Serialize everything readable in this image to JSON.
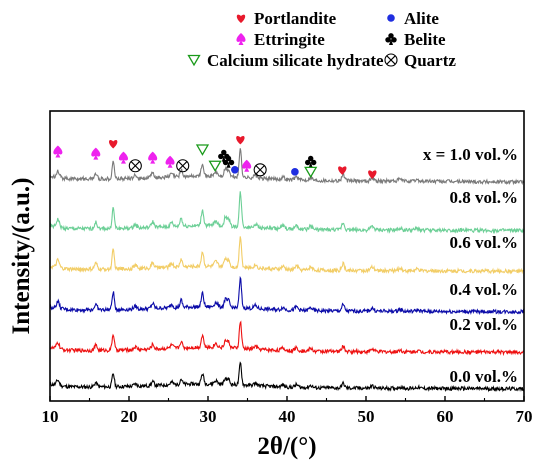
{
  "chart_data": {
    "type": "line",
    "xlabel": "2θ/(°)",
    "ylabel": "Intensity/(a.u.)",
    "xlim": [
      10,
      70
    ],
    "x_ticks": [
      "10",
      "20",
      "30",
      "40",
      "50",
      "60",
      "70"
    ],
    "grid": false,
    "legend_position": "top",
    "legend": [
      {
        "name": "Portlandite",
        "symbol": "heart",
        "color": "#e8192c"
      },
      {
        "name": "Alite",
        "symbol": "dot",
        "color": "#1f2ee0"
      },
      {
        "name": "Ettringite",
        "symbol": "spade",
        "color": "#ee22ee"
      },
      {
        "name": "Belite",
        "symbol": "club",
        "color": "#000000"
      },
      {
        "name": "Calcium silicate hydrate",
        "symbol": "triangle-down",
        "color": "#1a9a1a"
      },
      {
        "name": "Quartz",
        "symbol": "circle-x",
        "color": "#000000"
      }
    ],
    "series": [
      {
        "name": "0.0 vol.%",
        "color": "#000000",
        "baseline": 0.05,
        "slope": 0.025,
        "bump": 0.03,
        "scale": 0.45
      },
      {
        "name": "0.2 vol.%",
        "color": "#ee1111",
        "baseline": 0.95,
        "slope": 0.025,
        "bump": 0.03,
        "scale": 0.55
      },
      {
        "name": "0.4 vol.%",
        "color": "#0a0aa8",
        "baseline": 1.95,
        "slope": 0.025,
        "bump": 0.03,
        "scale": 0.6
      },
      {
        "name": "0.6 vol.%",
        "color": "#f2cd66",
        "baseline": 2.95,
        "slope": 0.025,
        "bump": 0.03,
        "scale": 0.65
      },
      {
        "name": "0.8 vol.%",
        "color": "#6ccf96",
        "baseline": 3.95,
        "slope": 0.025,
        "bump": 0.03,
        "scale": 0.7
      },
      {
        "name": "x = 1.0 vol.%",
        "color": "#7a7a7a",
        "baseline": 5.15,
        "slope": 0.04,
        "bump": 0.03,
        "scale": 0.6
      }
    ],
    "peaks": [
      {
        "x": 11.0,
        "h": 0.28,
        "w": 0.25
      },
      {
        "x": 15.8,
        "h": 0.22,
        "w": 0.25
      },
      {
        "x": 18.0,
        "h": 0.72,
        "w": 0.2
      },
      {
        "x": 20.8,
        "h": 0.12,
        "w": 0.3
      },
      {
        "x": 23.0,
        "h": 0.2,
        "w": 0.25
      },
      {
        "x": 25.4,
        "h": 0.14,
        "w": 0.25
      },
      {
        "x": 26.6,
        "h": 0.3,
        "w": 0.2
      },
      {
        "x": 29.3,
        "h": 0.55,
        "w": 0.22
      },
      {
        "x": 31.0,
        "h": 0.18,
        "w": 0.3
      },
      {
        "x": 32.2,
        "h": 0.32,
        "w": 0.22
      },
      {
        "x": 32.6,
        "h": 0.28,
        "w": 0.22
      },
      {
        "x": 34.1,
        "h": 1.2,
        "w": 0.2
      },
      {
        "x": 36.0,
        "h": 0.12,
        "w": 0.3
      },
      {
        "x": 39.5,
        "h": 0.1,
        "w": 0.3
      },
      {
        "x": 41.2,
        "h": 0.14,
        "w": 0.3
      },
      {
        "x": 43.0,
        "h": 0.12,
        "w": 0.3
      },
      {
        "x": 47.1,
        "h": 0.25,
        "w": 0.25
      },
      {
        "x": 50.8,
        "h": 0.12,
        "w": 0.3
      },
      {
        "x": 54.3,
        "h": 0.08,
        "w": 0.3
      },
      {
        "x": 56.5,
        "h": 0.06,
        "w": 0.3
      }
    ],
    "peak_markers": [
      {
        "symbol": "spade",
        "x": 11.0,
        "y": 5.9
      },
      {
        "symbol": "spade",
        "x": 15.8,
        "y": 5.85
      },
      {
        "symbol": "heart",
        "x": 18.0,
        "y": 6.1
      },
      {
        "symbol": "spade",
        "x": 19.3,
        "y": 5.75
      },
      {
        "symbol": "circle-x",
        "x": 20.8,
        "y": 5.55
      },
      {
        "symbol": "spade",
        "x": 23.0,
        "y": 5.75
      },
      {
        "symbol": "spade",
        "x": 25.2,
        "y": 5.65
      },
      {
        "symbol": "circle-x",
        "x": 26.8,
        "y": 5.55
      },
      {
        "symbol": "triangle-down",
        "x": 29.3,
        "y": 5.95
      },
      {
        "symbol": "triangle-down",
        "x": 30.9,
        "y": 5.55
      },
      {
        "symbol": "club",
        "x": 32.0,
        "y": 5.8
      },
      {
        "symbol": "club",
        "x": 32.6,
        "y": 5.65
      },
      {
        "symbol": "dot",
        "x": 33.4,
        "y": 5.45
      },
      {
        "symbol": "heart",
        "x": 34.1,
        "y": 6.2
      },
      {
        "symbol": "spade",
        "x": 34.9,
        "y": 5.55
      },
      {
        "symbol": "circle-x",
        "x": 36.6,
        "y": 5.45
      },
      {
        "symbol": "dot",
        "x": 41.0,
        "y": 5.4
      },
      {
        "symbol": "club",
        "x": 43.0,
        "y": 5.65
      },
      {
        "symbol": "triangle-down",
        "x": 43.0,
        "y": 5.4
      },
      {
        "symbol": "heart",
        "x": 47.0,
        "y": 5.45
      },
      {
        "symbol": "heart",
        "x": 50.8,
        "y": 5.35
      }
    ]
  }
}
